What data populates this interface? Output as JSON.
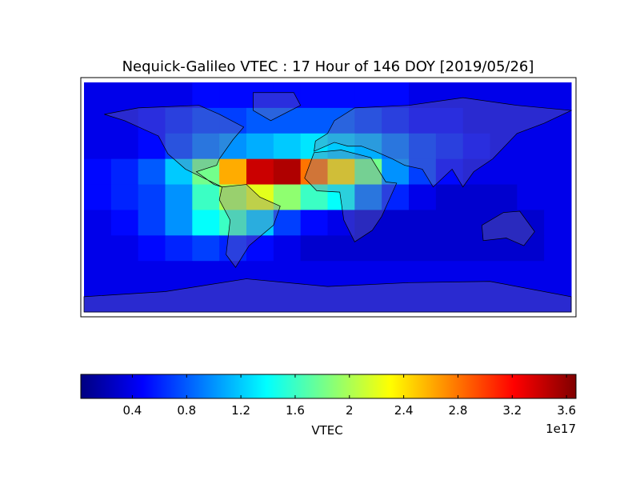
{
  "chart_data": {
    "type": "heatmap",
    "title": "Nequick-Galileo VTEC : 17 Hour of 146 DOY [2019/05/26]",
    "colorbar_label": "VTEC",
    "colorbar_offset": "1e17",
    "colormap": "jet",
    "clim": [
      0.02,
      3.67
    ],
    "cticks": [
      0.4,
      0.8,
      1.2,
      1.6,
      2.0,
      2.4,
      2.8,
      3.2,
      3.6
    ],
    "z": [
      [
        0.4,
        0.4,
        0.4,
        0.4,
        0.5,
        0.5,
        0.5,
        0.5,
        0.5,
        0.5,
        0.5,
        0.5,
        0.4,
        0.4,
        0.4,
        0.4,
        0.4,
        0.4
      ],
      [
        0.4,
        0.4,
        0.5,
        0.6,
        0.7,
        0.7,
        0.8,
        0.8,
        0.8,
        0.8,
        0.7,
        0.6,
        0.5,
        0.5,
        0.4,
        0.4,
        0.4,
        0.4
      ],
      [
        0.4,
        0.4,
        0.5,
        0.7,
        0.9,
        1.0,
        1.1,
        1.2,
        1.3,
        1.2,
        1.1,
        0.9,
        0.7,
        0.6,
        0.5,
        0.4,
        0.4,
        0.4
      ],
      [
        0.5,
        0.6,
        0.8,
        1.2,
        1.8,
        2.6,
        3.4,
        3.5,
        2.8,
        2.4,
        1.8,
        1.0,
        0.7,
        0.5,
        0.4,
        0.4,
        0.4,
        0.4
      ],
      [
        0.5,
        0.6,
        0.7,
        1.0,
        1.6,
        2.0,
        2.2,
        1.9,
        1.6,
        1.4,
        0.9,
        0.6,
        0.4,
        0.3,
        0.3,
        0.3,
        0.4,
        0.4
      ],
      [
        0.4,
        0.5,
        0.7,
        1.0,
        1.4,
        1.6,
        1.2,
        0.7,
        0.5,
        0.4,
        0.3,
        0.3,
        0.3,
        0.3,
        0.3,
        0.3,
        0.3,
        0.4
      ],
      [
        0.4,
        0.4,
        0.5,
        0.6,
        0.7,
        0.6,
        0.5,
        0.4,
        0.3,
        0.3,
        0.3,
        0.3,
        0.3,
        0.3,
        0.3,
        0.3,
        0.3,
        0.4
      ],
      [
        0.4,
        0.4,
        0.4,
        0.4,
        0.4,
        0.4,
        0.4,
        0.4,
        0.4,
        0.4,
        0.4,
        0.4,
        0.4,
        0.4,
        0.4,
        0.4,
        0.4,
        0.4
      ],
      [
        0.4,
        0.4,
        0.4,
        0.4,
        0.4,
        0.4,
        0.4,
        0.4,
        0.4,
        0.4,
        0.4,
        0.4,
        0.4,
        0.4,
        0.4,
        0.4,
        0.4,
        0.4
      ]
    ]
  }
}
